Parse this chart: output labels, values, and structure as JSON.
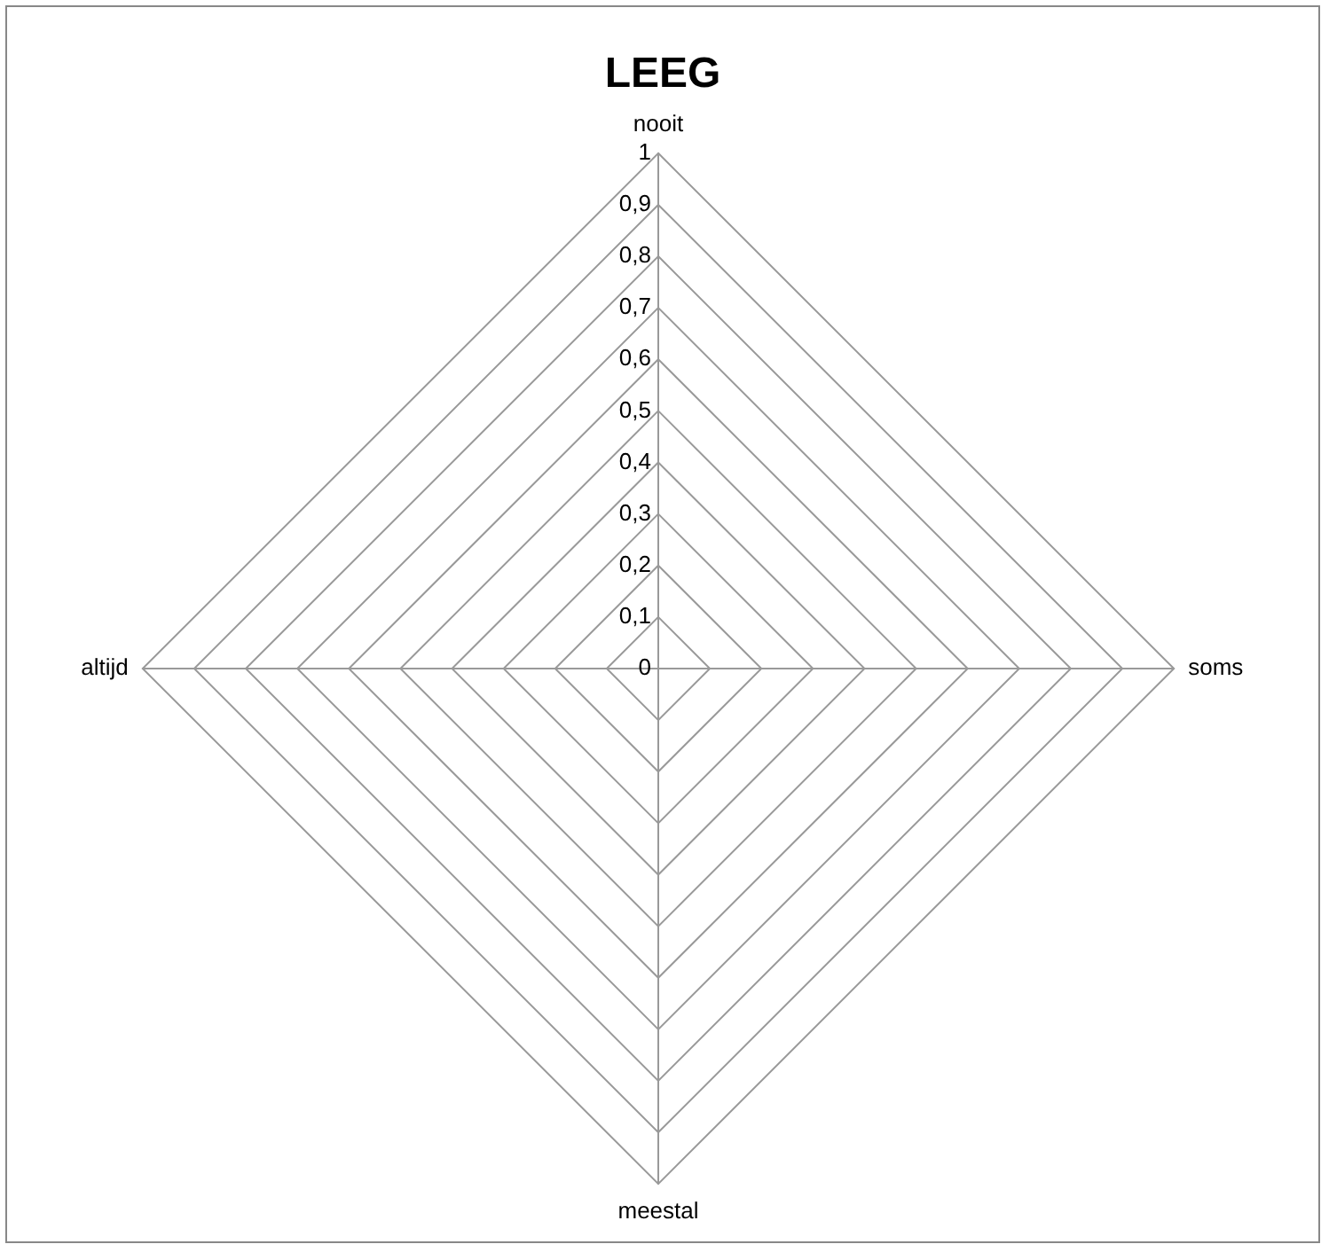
{
  "chart_data": {
    "type": "radar",
    "title": "LEEG",
    "categories": [
      "nooit",
      "soms",
      "meestal",
      "altijd"
    ],
    "series": [
      {
        "values": [
          null,
          null,
          null,
          null
        ]
      }
    ],
    "ylim": [
      0,
      1
    ],
    "yticks": [
      0,
      {
        "value": 0.1,
        "label": "0,1"
      },
      {
        "value": 0.2,
        "label": "0,2"
      },
      {
        "value": 0.3,
        "label": "0,3"
      },
      {
        "value": 0.4,
        "label": "0,4"
      },
      {
        "value": 0.5,
        "label": "0,5"
      },
      {
        "value": 0.6,
        "label": "0,6"
      },
      {
        "value": 0.7,
        "label": "0,7"
      },
      {
        "value": 0.8,
        "label": "0,8"
      },
      {
        "value": 0.9,
        "label": "0,9"
      },
      1
    ],
    "grid": true,
    "legend": false
  }
}
